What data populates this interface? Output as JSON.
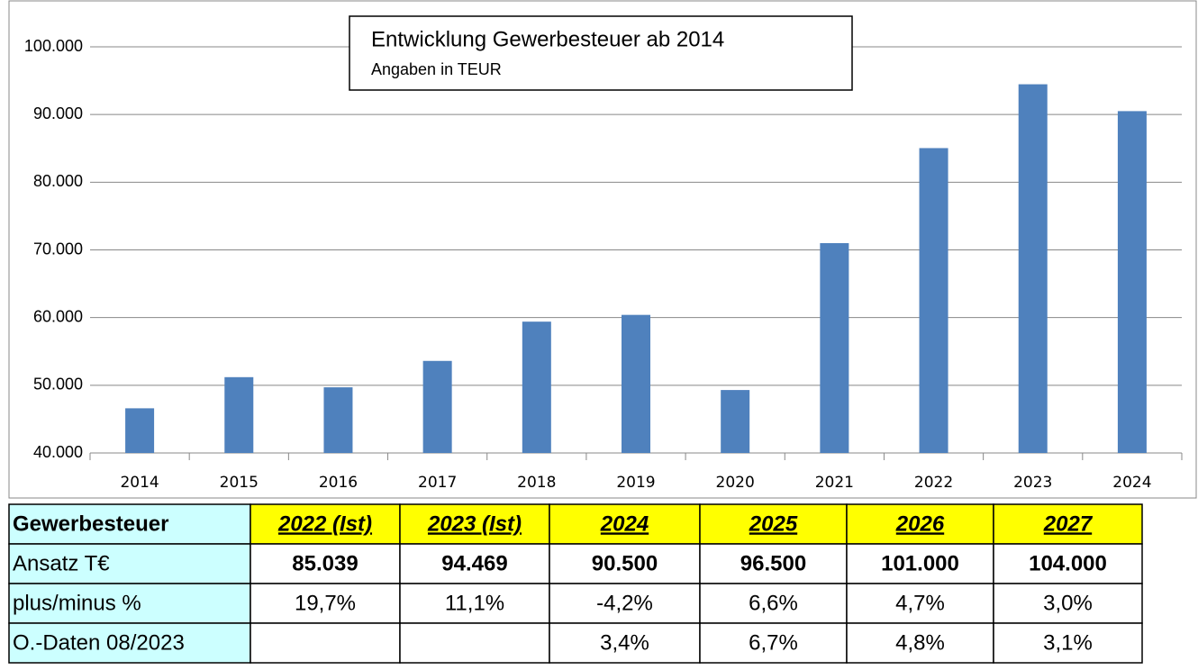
{
  "chart_data": {
    "type": "bar",
    "title": "Entwicklung Gewerbesteuer ab 2014",
    "subtitle": "Angaben in TEUR",
    "categories": [
      "2014",
      "2015",
      "2016",
      "2017",
      "2018",
      "2019",
      "2020",
      "2021",
      "2022",
      "2023",
      "2024"
    ],
    "values": [
      46600,
      51200,
      49700,
      53600,
      59400,
      60400,
      49300,
      71000,
      85039,
      94469,
      90500
    ],
    "color": "#4f81bd",
    "ylim": [
      40000,
      100000
    ],
    "yticks": [
      {
        "value": 40000,
        "label": "40.000"
      },
      {
        "value": 50000,
        "label": "50.000"
      },
      {
        "value": 60000,
        "label": "60.000"
      },
      {
        "value": 70000,
        "label": "70.000"
      },
      {
        "value": 80000,
        "label": "80.000"
      },
      {
        "value": 90000,
        "label": "90.000"
      },
      {
        "value": 100000,
        "label": "100.000"
      }
    ],
    "grid": true
  },
  "table": {
    "header": [
      "Gewerbesteuer",
      "2022 (Ist)",
      "2023 (Ist)",
      "2024",
      "2025",
      "2026",
      "2027"
    ],
    "rows": [
      [
        "Ansatz T€",
        "85.039",
        "94.469",
        "90.500",
        "96.500",
        "101.000",
        "104.000"
      ],
      [
        "plus/minus %",
        "19,7%",
        "11,1%",
        "-4,2%",
        "6,6%",
        "4,7%",
        "3,0%"
      ],
      [
        "O.-Daten 08/2023",
        null,
        null,
        "3,4%",
        "6,7%",
        "4,8%",
        "3,1%"
      ]
    ]
  }
}
